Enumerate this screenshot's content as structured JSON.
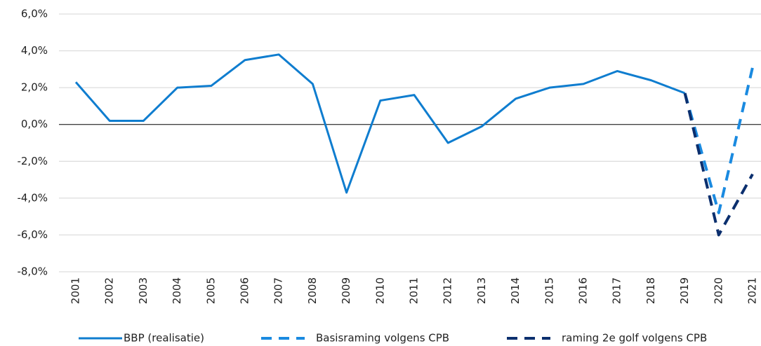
{
  "chart_data": {
    "type": "line",
    "categories": [
      "2001",
      "2002",
      "2003",
      "2004",
      "2005",
      "2006",
      "2007",
      "2008",
      "2009",
      "2010",
      "2011",
      "2012",
      "2013",
      "2014",
      "2015",
      "2016",
      "2017",
      "2018",
      "2019",
      "2020",
      "2021"
    ],
    "series": [
      {
        "name": "BBP (realisatie)",
        "color": "#0f7dcf",
        "style": "solid",
        "values": [
          2.3,
          0.2,
          0.2,
          2.0,
          2.1,
          3.5,
          3.8,
          2.2,
          -3.7,
          1.3,
          1.6,
          -1.0,
          -0.1,
          1.4,
          2.0,
          2.2,
          2.9,
          2.4,
          1.7,
          null,
          null
        ]
      },
      {
        "name": "Basisraming volgens CPB",
        "color": "#1a8ae0",
        "style": "dashed",
        "values": [
          null,
          null,
          null,
          null,
          null,
          null,
          null,
          null,
          null,
          null,
          null,
          null,
          null,
          null,
          null,
          null,
          null,
          null,
          1.7,
          -4.8,
          3.1
        ]
      },
      {
        "name": "raming 2e golf volgens CPB",
        "color": "#0b2f6e",
        "style": "dashed",
        "values": [
          null,
          null,
          null,
          null,
          null,
          null,
          null,
          null,
          null,
          null,
          null,
          null,
          null,
          null,
          null,
          null,
          null,
          null,
          1.7,
          -6.0,
          -2.7
        ]
      }
    ],
    "ylim": [
      -8,
      6
    ],
    "yticks": [
      {
        "value": -8,
        "label": "-8,0%"
      },
      {
        "value": -6,
        "label": "-6,0%"
      },
      {
        "value": -4,
        "label": "-4,0%"
      },
      {
        "value": -2,
        "label": "-2,0%"
      },
      {
        "value": 0,
        "label": "0,0%"
      },
      {
        "value": 2,
        "label": "2,0%"
      },
      {
        "value": 4,
        "label": "4,0%"
      },
      {
        "value": 6,
        "label": "6,0%"
      }
    ],
    "grid": true,
    "legend": "bottom"
  }
}
